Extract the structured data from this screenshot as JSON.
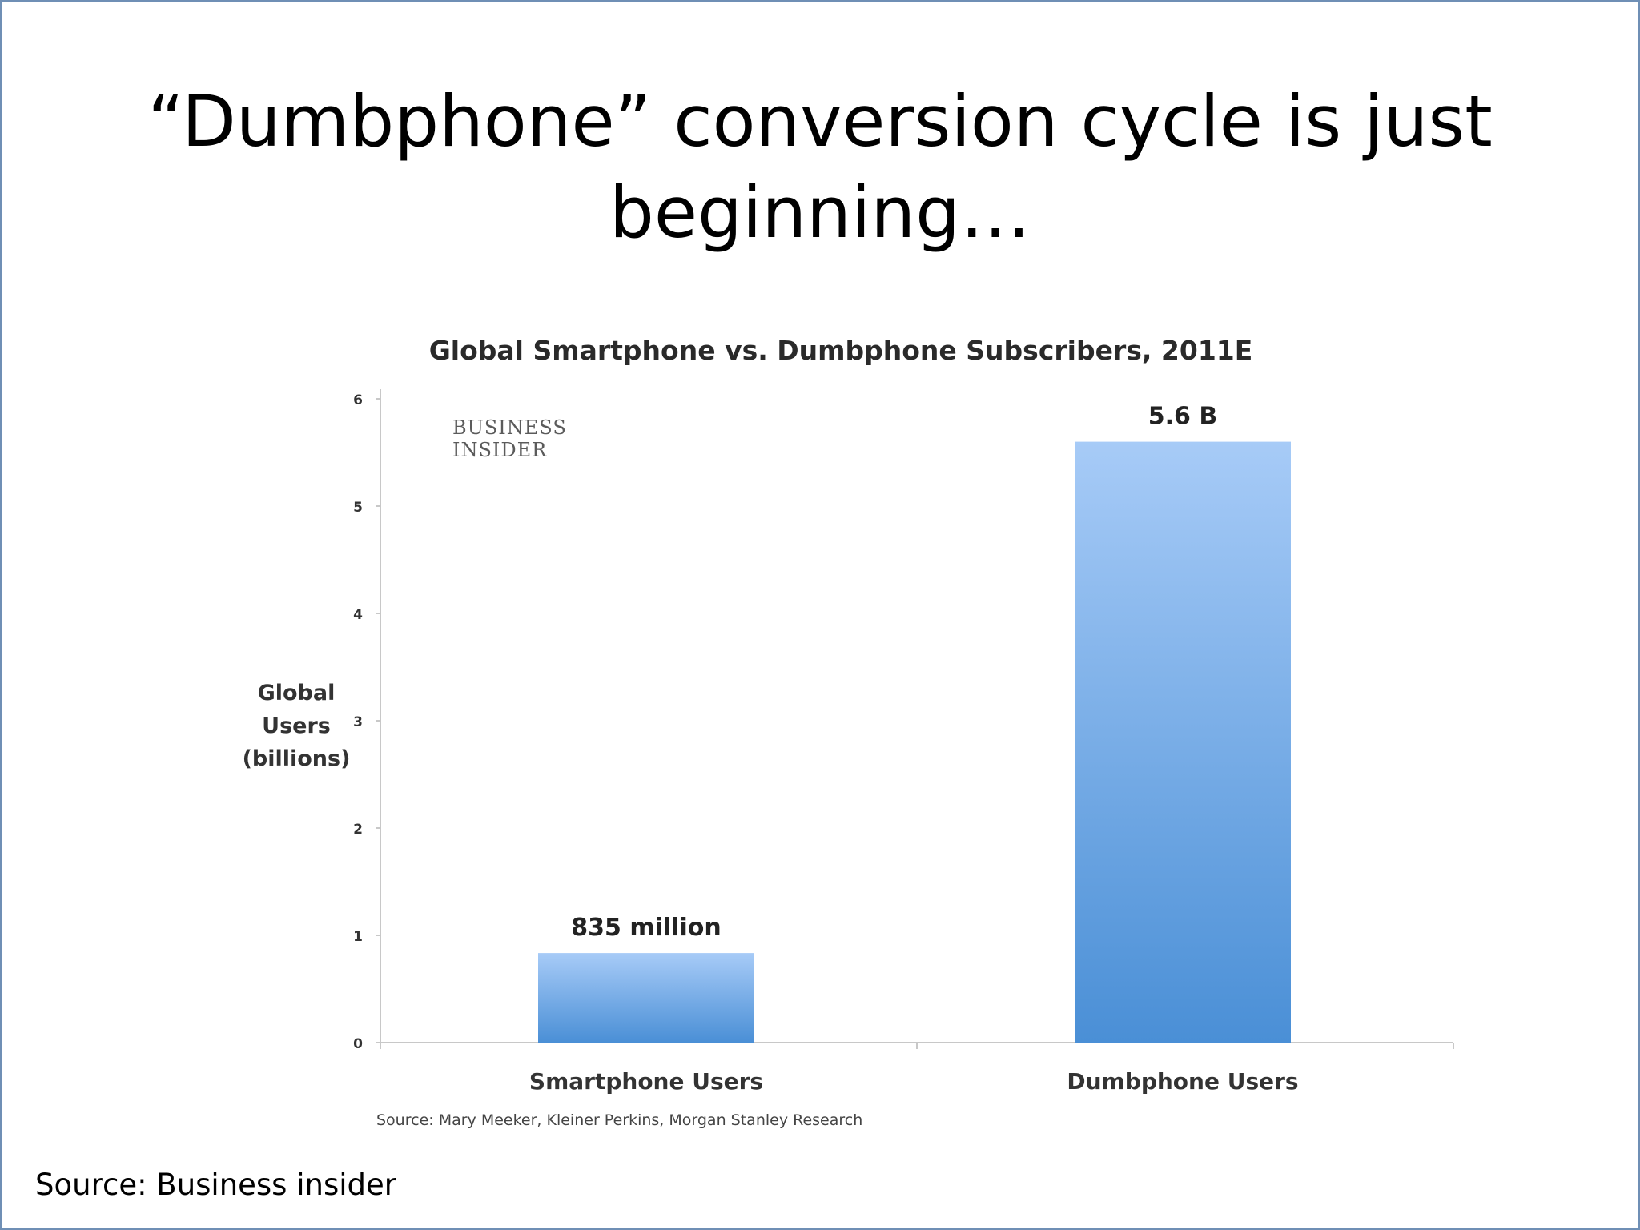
{
  "slide": {
    "title_line1": "“Dumbphone” conversion cycle is just",
    "title_line2": "beginning…",
    "source": "Source: Business insider"
  },
  "logo": {
    "line1": "BUSINESS",
    "line2": "INSIDER"
  },
  "colors": {
    "bar_top": "#a7cbf7",
    "bar_bottom": "#4a8fd6",
    "axis": "#c8c8c8"
  },
  "chart_data": {
    "type": "bar",
    "title": "Global Smartphone vs. Dumbphone Subscribers, 2011E",
    "ylabel_lines": [
      "Global",
      "Users",
      "(billions)"
    ],
    "xlabel": "",
    "categories": [
      "Smartphone Users",
      "Dumbphone Users"
    ],
    "values": [
      0.835,
      5.6
    ],
    "data_labels": [
      "835 million",
      "5.6 B"
    ],
    "yticks": [
      0,
      1,
      2,
      3,
      4,
      5,
      6
    ],
    "ylim": [
      0,
      6
    ],
    "grid": false,
    "legend": "none",
    "source": "Source: Mary Meeker, Kleiner Perkins, Morgan Stanley Research"
  }
}
